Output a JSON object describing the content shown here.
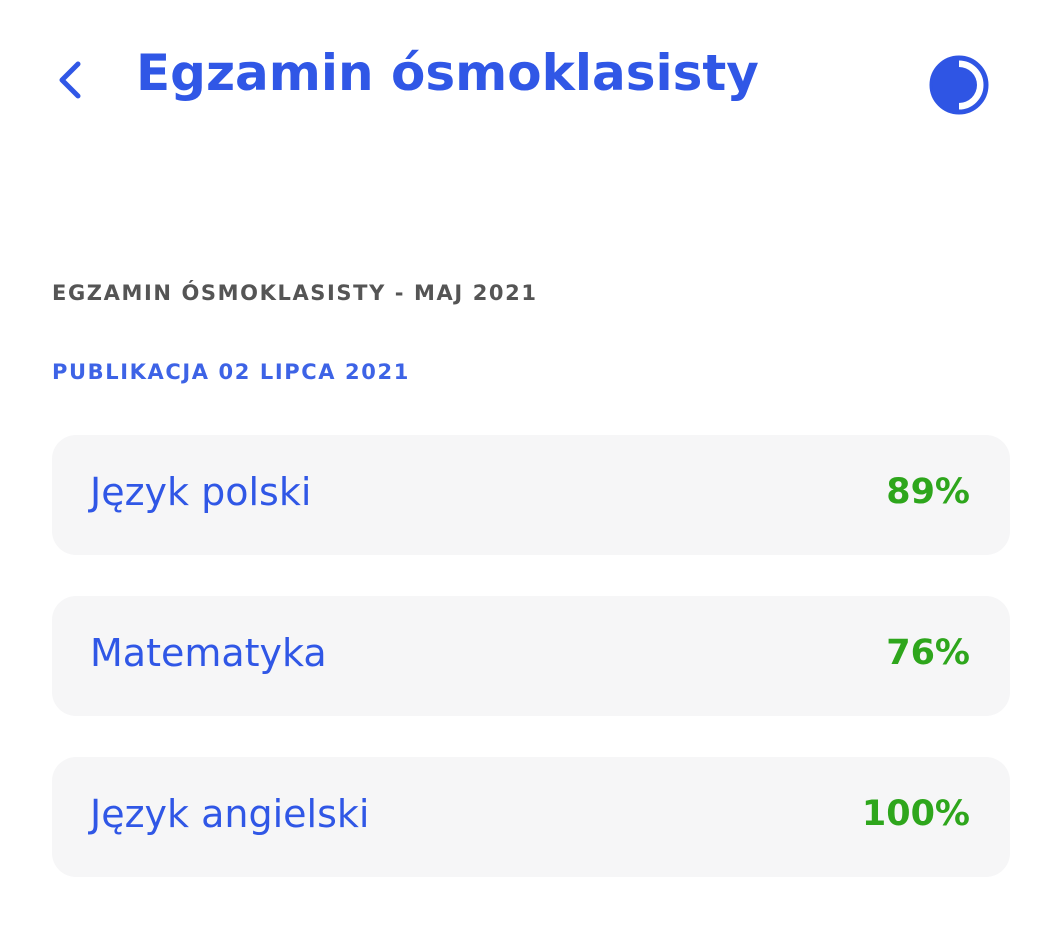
{
  "header": {
    "title": "Egzamin ósmoklasisty"
  },
  "section": {
    "title": "EGZAMIN ÓSMOKLASISTY - MAJ 2021",
    "publication": "PUBLIKACJA 02 LIPCA 2021"
  },
  "results": [
    {
      "subject": "Język polski",
      "score": "89%"
    },
    {
      "subject": "Matematyka",
      "score": "76%"
    },
    {
      "subject": "Język angielski",
      "score": "100%"
    }
  ]
}
